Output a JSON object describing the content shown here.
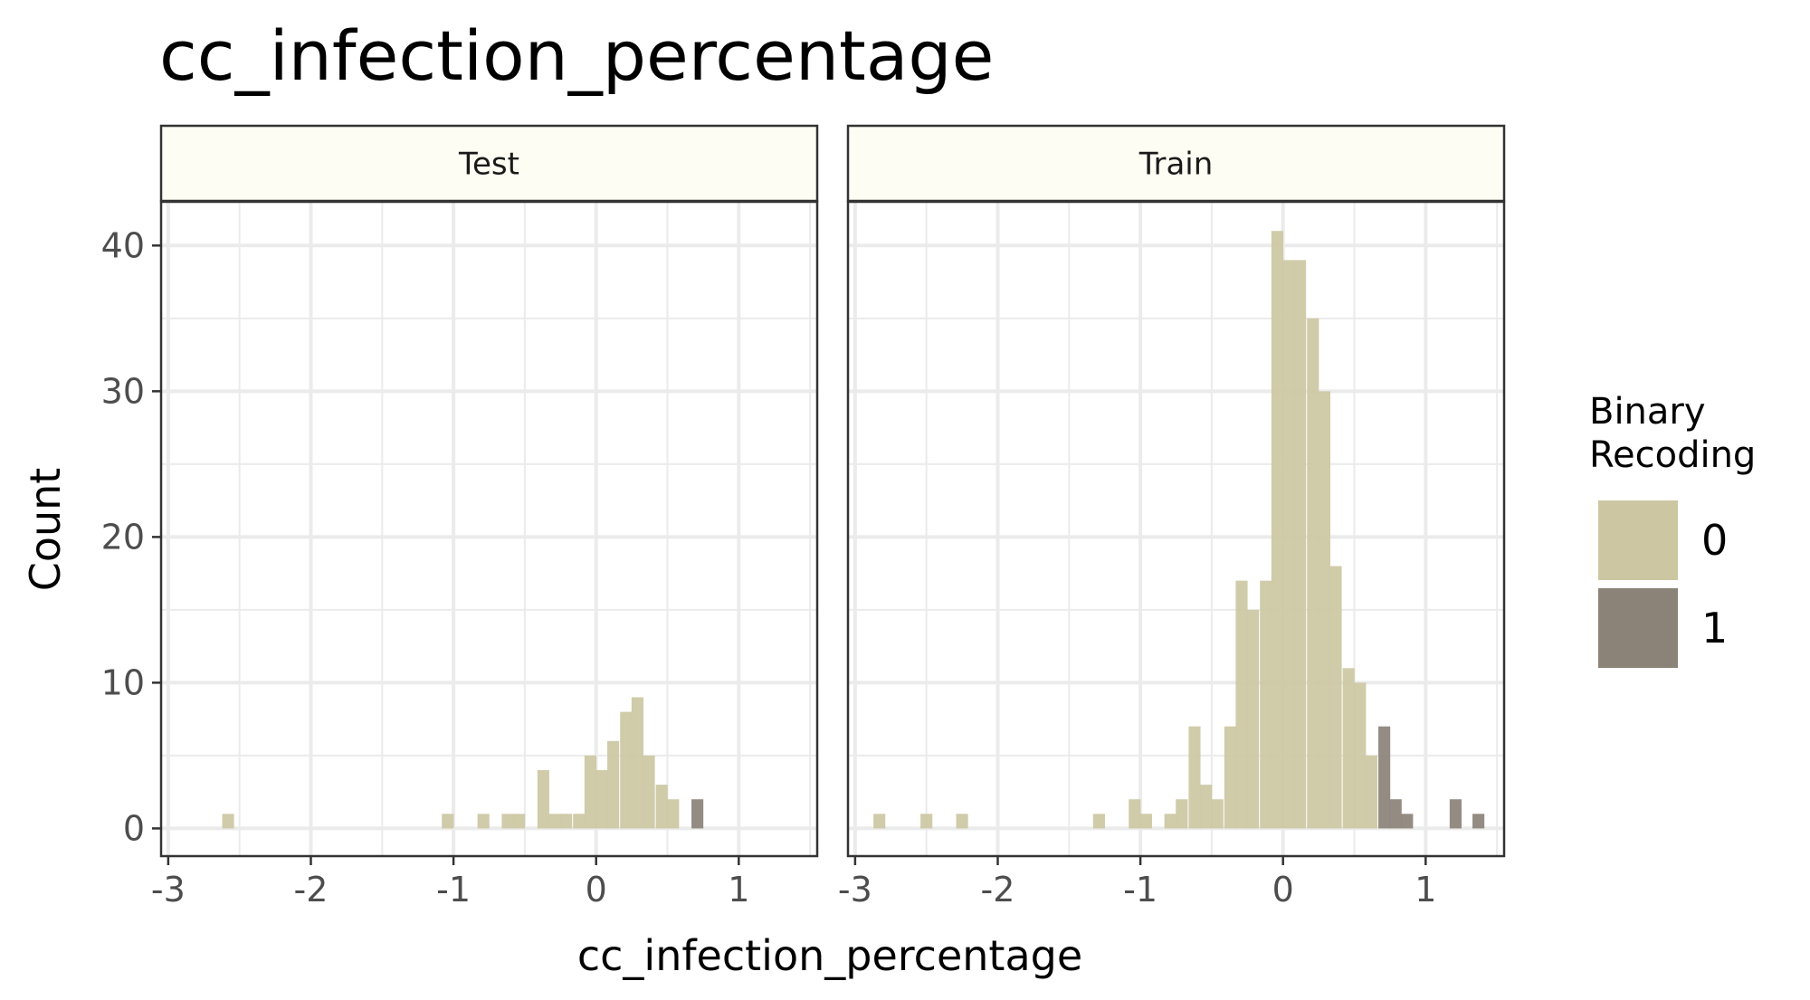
{
  "chart_data": {
    "type": "bar",
    "title": "cc_infection_percentage",
    "xlabel": "cc_infection_percentage",
    "ylabel": "Count",
    "xlim": [
      -3.05,
      1.55
    ],
    "ylim": [
      -1.9,
      43
    ],
    "x_ticks": [
      -3,
      -2,
      -1,
      0,
      1
    ],
    "x_tick_labels": [
      "-3",
      "-2",
      "-1",
      "0",
      "1"
    ],
    "y_ticks": [
      0,
      10,
      20,
      30,
      40
    ],
    "y_tick_labels": [
      "0",
      "10",
      "20",
      "30",
      "40"
    ],
    "grid": true,
    "bin_width": 0.0833,
    "legend": {
      "title": [
        "Binary",
        "Recoding"
      ],
      "position": "right",
      "entries": [
        {
          "label": "0",
          "color": "#ccc7a2"
        },
        {
          "label": "1",
          "color": "#8c8378"
        }
      ]
    },
    "facets": [
      {
        "label": "Test",
        "series": [
          {
            "name": "0",
            "color": "#ccc7a2",
            "bins": [
              {
                "x": -2.58,
                "y": 1
              },
              {
                "x": -1.04,
                "y": 1
              },
              {
                "x": -0.79,
                "y": 1
              },
              {
                "x": -0.62,
                "y": 1
              },
              {
                "x": -0.54,
                "y": 1
              },
              {
                "x": -0.37,
                "y": 4
              },
              {
                "x": -0.29,
                "y": 1
              },
              {
                "x": -0.21,
                "y": 1
              },
              {
                "x": -0.12,
                "y": 1
              },
              {
                "x": -0.04,
                "y": 5
              },
              {
                "x": 0.04,
                "y": 4
              },
              {
                "x": 0.12,
                "y": 6
              },
              {
                "x": 0.21,
                "y": 8
              },
              {
                "x": 0.29,
                "y": 9
              },
              {
                "x": 0.37,
                "y": 5
              },
              {
                "x": 0.46,
                "y": 3
              },
              {
                "x": 0.54,
                "y": 2
              }
            ]
          },
          {
            "name": "1",
            "color": "#8c8378",
            "bins": [
              {
                "x": 0.71,
                "y": 2
              }
            ]
          }
        ]
      },
      {
        "label": "Train",
        "series": [
          {
            "name": "0",
            "color": "#ccc7a2",
            "bins": [
              {
                "x": -2.83,
                "y": 1
              },
              {
                "x": -2.5,
                "y": 1
              },
              {
                "x": -2.25,
                "y": 1
              },
              {
                "x": -1.29,
                "y": 1
              },
              {
                "x": -1.04,
                "y": 2
              },
              {
                "x": -0.96,
                "y": 1
              },
              {
                "x": -0.79,
                "y": 1
              },
              {
                "x": -0.71,
                "y": 2
              },
              {
                "x": -0.62,
                "y": 7
              },
              {
                "x": -0.54,
                "y": 3
              },
              {
                "x": -0.46,
                "y": 2
              },
              {
                "x": -0.37,
                "y": 7
              },
              {
                "x": -0.29,
                "y": 17
              },
              {
                "x": -0.21,
                "y": 15
              },
              {
                "x": -0.12,
                "y": 17
              },
              {
                "x": -0.04,
                "y": 41
              },
              {
                "x": 0.04,
                "y": 39
              },
              {
                "x": 0.12,
                "y": 39
              },
              {
                "x": 0.21,
                "y": 35
              },
              {
                "x": 0.29,
                "y": 30
              },
              {
                "x": 0.37,
                "y": 18
              },
              {
                "x": 0.46,
                "y": 11
              },
              {
                "x": 0.54,
                "y": 10
              },
              {
                "x": 0.62,
                "y": 5
              }
            ]
          },
          {
            "name": "1",
            "color": "#8c8378",
            "bins": [
              {
                "x": 0.71,
                "y": 7
              },
              {
                "x": 0.79,
                "y": 2
              },
              {
                "x": 0.87,
                "y": 1
              },
              {
                "x": 1.21,
                "y": 2
              },
              {
                "x": 1.37,
                "y": 1
              }
            ]
          }
        ]
      }
    ]
  }
}
